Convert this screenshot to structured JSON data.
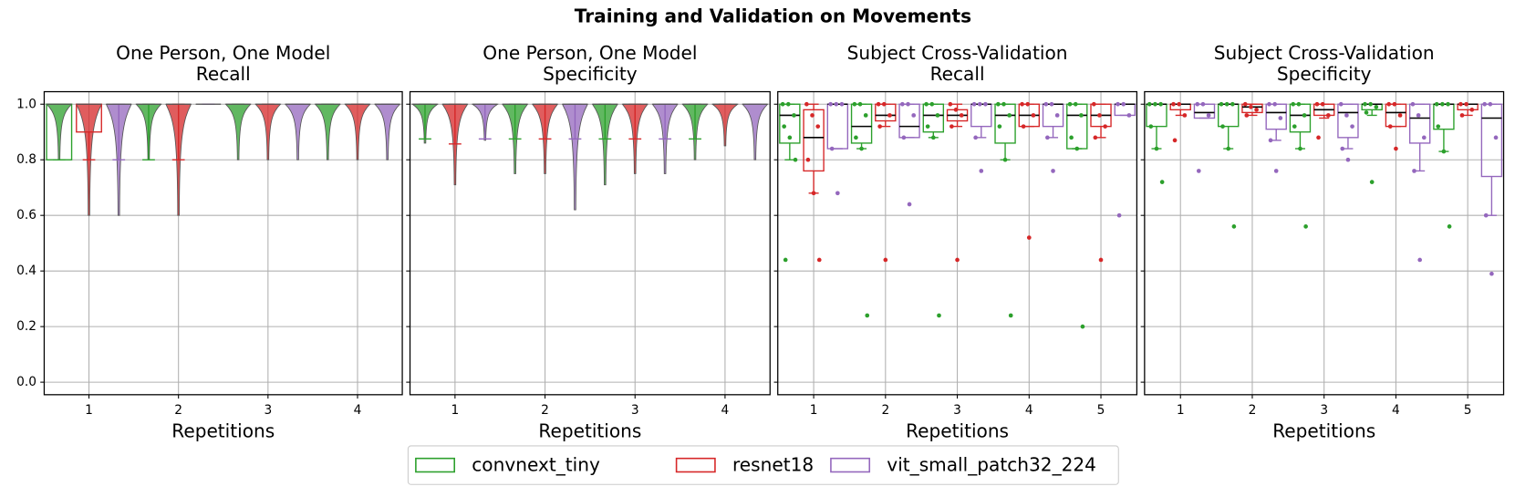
{
  "title": "Training and Validation on Movements",
  "legend": [
    {
      "name": "convnext_tiny",
      "color": "#2ca02c"
    },
    {
      "name": "resnet18",
      "color": "#d62728"
    },
    {
      "name": "vit_small_patch32_224",
      "color": "#9467bd"
    }
  ],
  "chart_data": [
    {
      "type": "violin",
      "title": [
        "One Person, One Model",
        "Recall"
      ],
      "xlabel": "Repetitions",
      "xticks": [
        1,
        2,
        3,
        4
      ],
      "xlim": [
        0.5,
        4.5
      ],
      "ylim": [
        -0.045,
        1.045
      ],
      "grid": true,
      "yticks": [
        {
          "value": 0,
          "label": "0.0"
        },
        0.2,
        0.4,
        0.6,
        0.8,
        {
          "value": 1,
          "label": "1.0"
        }
      ],
      "series": [
        {
          "values": [
            {
              "min": 0.8,
              "max": 1,
              "whislo": 0.8,
              "q1": 0.8,
              "median": 1,
              "q3": 1,
              "whishi": 1
            },
            {
              "min": 0.8,
              "max": 1,
              "whislo": 0.8,
              "q1": 1,
              "median": 1,
              "q3": 1,
              "whishi": 1
            },
            {
              "min": 0.8,
              "max": 1,
              "whislo": 1,
              "q1": 1,
              "median": 1,
              "q3": 1,
              "whishi": 1
            },
            {
              "min": 0.8,
              "max": 1,
              "whislo": 1,
              "q1": 1,
              "median": 1,
              "q3": 1,
              "whishi": 1
            }
          ]
        },
        {
          "values": [
            {
              "min": 0.6,
              "max": 1,
              "whislo": 0.8,
              "q1": 0.9,
              "median": 1,
              "q3": 1,
              "whishi": 1
            },
            {
              "min": 0.6,
              "max": 1,
              "whislo": 0.8,
              "q1": 1,
              "median": 1,
              "q3": 1,
              "whishi": 1
            },
            {
              "min": 0.8,
              "max": 1,
              "whislo": 1,
              "q1": 1,
              "median": 1,
              "q3": 1,
              "whishi": 1
            },
            {
              "min": 0.8,
              "max": 1,
              "whislo": 1,
              "q1": 1,
              "median": 1,
              "q3": 1,
              "whishi": 1
            }
          ]
        },
        {
          "values": [
            {
              "min": 0.6,
              "max": 1,
              "whislo": 0.8,
              "q1": 1,
              "median": 1,
              "q3": 1,
              "whishi": 1
            },
            {
              "min": 1,
              "max": 1,
              "whislo": 1,
              "q1": 1,
              "median": 1,
              "q3": 1,
              "whishi": 1
            },
            {
              "min": 0.8,
              "max": 1,
              "whislo": 1,
              "q1": 1,
              "median": 1,
              "q3": 1,
              "whishi": 1
            },
            {
              "min": 0.8,
              "max": 1,
              "whislo": 1,
              "q1": 1,
              "median": 1,
              "q3": 1,
              "whishi": 1
            }
          ]
        }
      ]
    },
    {
      "type": "violin",
      "title": [
        "One Person, One Model",
        "Specificity"
      ],
      "xlabel": "Repetitions",
      "xticks": [
        1,
        2,
        3,
        4
      ],
      "xlim": [
        0.5,
        4.5
      ],
      "ylim": [
        -0.045,
        1.045
      ],
      "grid": true,
      "yticks": [
        0,
        0.2,
        0.4,
        0.6,
        0.8,
        1
      ],
      "series": [
        {
          "values": [
            {
              "min": 0.86,
              "max": 1,
              "whislo": 0.875,
              "q1": 1,
              "median": 1,
              "q3": 1,
              "whishi": 1
            },
            {
              "min": 0.75,
              "max": 1,
              "whislo": 0.875,
              "q1": 1,
              "median": 1,
              "q3": 1,
              "whishi": 1
            },
            {
              "min": 0.71,
              "max": 1,
              "whislo": 0.875,
              "q1": 1,
              "median": 1,
              "q3": 1,
              "whishi": 1
            },
            {
              "min": 0.8,
              "max": 1,
              "whislo": 0.875,
              "q1": 1,
              "median": 1,
              "q3": 1,
              "whishi": 1
            }
          ]
        },
        {
          "values": [
            {
              "min": 0.71,
              "max": 1,
              "whislo": 0.857,
              "q1": 1,
              "median": 1,
              "q3": 1,
              "whishi": 1
            },
            {
              "min": 0.75,
              "max": 1,
              "whislo": 0.875,
              "q1": 1,
              "median": 1,
              "q3": 1,
              "whishi": 1
            },
            {
              "min": 0.75,
              "max": 1,
              "whislo": 0.875,
              "q1": 1,
              "median": 1,
              "q3": 1,
              "whishi": 1
            },
            {
              "min": 0.85,
              "max": 1,
              "whislo": 1,
              "q1": 1,
              "median": 1,
              "q3": 1,
              "whishi": 1
            }
          ]
        },
        {
          "values": [
            {
              "min": 0.87,
              "max": 1,
              "whislo": 0.875,
              "q1": 1,
              "median": 1,
              "q3": 1,
              "whishi": 1
            },
            {
              "min": 0.62,
              "max": 1,
              "whislo": 0.875,
              "q1": 1,
              "median": 1,
              "q3": 1,
              "whishi": 1
            },
            {
              "min": 0.75,
              "max": 1,
              "whislo": 0.875,
              "q1": 1,
              "median": 1,
              "q3": 1,
              "whishi": 1
            },
            {
              "min": 0.8,
              "max": 1,
              "whislo": 1,
              "q1": 1,
              "median": 1,
              "q3": 1,
              "whishi": 1
            }
          ]
        }
      ]
    },
    {
      "type": "box",
      "title": [
        "Subject Cross-Validation",
        "Recall"
      ],
      "xlabel": "Repetitions",
      "xticks": [
        1,
        2,
        3,
        4,
        5
      ],
      "xlim": [
        0.5,
        5.5
      ],
      "ylim": [
        -0.045,
        1.045
      ],
      "grid": true,
      "yticks": [
        0,
        0.2,
        0.4,
        0.6,
        0.8,
        1
      ],
      "series": [
        {
          "values": [
            {
              "whislo": 0.8,
              "q1": 0.86,
              "median": 0.96,
              "q3": 1,
              "whishi": 1,
              "points": [
                1,
                1,
                0.96,
                0.92,
                0.88,
                0.8,
                0.44
              ]
            },
            {
              "whislo": 0.84,
              "q1": 0.86,
              "median": 0.92,
              "q3": 1,
              "whishi": 1,
              "points": [
                1,
                1,
                0.96,
                0.88,
                0.84,
                0.24
              ]
            },
            {
              "whislo": 0.88,
              "q1": 0.9,
              "median": 0.96,
              "q3": 1,
              "whishi": 1,
              "points": [
                1,
                1,
                0.96,
                0.92,
                0.88,
                0.24
              ]
            },
            {
              "whislo": 0.8,
              "q1": 0.86,
              "median": 0.96,
              "q3": 1,
              "whishi": 1,
              "points": [
                1,
                1,
                0.96,
                0.92,
                0.8,
                0.24
              ]
            },
            {
              "whislo": 0.84,
              "q1": 0.84,
              "median": 0.96,
              "q3": 1,
              "whishi": 1,
              "points": [
                1,
                1,
                0.96,
                0.88,
                0.84,
                0.2
              ]
            }
          ]
        },
        {
          "values": [
            {
              "whislo": 0.68,
              "q1": 0.76,
              "median": 0.88,
              "q3": 0.98,
              "whishi": 1,
              "points": [
                1,
                0.96,
                0.92,
                0.8,
                0.68,
                0.44
              ]
            },
            {
              "whislo": 0.92,
              "q1": 0.94,
              "median": 0.96,
              "q3": 1,
              "whishi": 1,
              "points": [
                1,
                1,
                0.96,
                0.92,
                0.44
              ]
            },
            {
              "whislo": 0.92,
              "q1": 0.94,
              "median": 0.96,
              "q3": 0.98,
              "whishi": 1,
              "points": [
                1,
                0.98,
                0.96,
                0.92,
                0.44
              ]
            },
            {
              "whislo": 0.92,
              "q1": 0.92,
              "median": 0.96,
              "q3": 1,
              "whishi": 1,
              "points": [
                1,
                1,
                0.96,
                0.92,
                0.52
              ]
            },
            {
              "whislo": 0.88,
              "q1": 0.92,
              "median": 0.96,
              "q3": 1,
              "whishi": 1,
              "points": [
                1,
                0.96,
                0.92,
                0.88,
                0.44
              ]
            }
          ]
        },
        {
          "values": [
            {
              "whislo": 0.84,
              "q1": 0.84,
              "median": 1,
              "q3": 1,
              "whishi": 1,
              "points": [
                1,
                1,
                1,
                0.84,
                0.68
              ]
            },
            {
              "whislo": 0.88,
              "q1": 0.88,
              "median": 0.92,
              "q3": 1,
              "whishi": 1,
              "points": [
                1,
                1,
                0.96,
                0.88,
                0.64
              ]
            },
            {
              "whislo": 0.88,
              "q1": 0.92,
              "median": 1,
              "q3": 1,
              "whishi": 1,
              "points": [
                1,
                1,
                1,
                0.88,
                0.76
              ]
            },
            {
              "whislo": 0.88,
              "q1": 0.92,
              "median": 1,
              "q3": 1,
              "whishi": 1,
              "points": [
                1,
                1,
                0.96,
                0.88,
                0.76
              ]
            },
            {
              "whislo": 0.96,
              "q1": 0.96,
              "median": 1,
              "q3": 1,
              "whishi": 1,
              "points": [
                1,
                1,
                0.96,
                0.6
              ]
            }
          ]
        }
      ]
    },
    {
      "type": "box",
      "title": [
        "Subject Cross-Validation",
        "Specificity"
      ],
      "xlabel": "Repetitions",
      "xticks": [
        1,
        2,
        3,
        4,
        5
      ],
      "xlim": [
        0.5,
        5.5
      ],
      "ylim": [
        -0.045,
        1.045
      ],
      "grid": true,
      "yticks": [
        0,
        0.2,
        0.4,
        0.6,
        0.8,
        1
      ],
      "series": [
        {
          "values": [
            {
              "whislo": 0.84,
              "q1": 0.92,
              "median": 1,
              "q3": 1,
              "whishi": 1,
              "points": [
                1,
                1,
                1,
                0.92,
                0.84,
                0.72
              ]
            },
            {
              "whislo": 0.84,
              "q1": 0.92,
              "median": 1,
              "q3": 1,
              "whishi": 1,
              "points": [
                1,
                1,
                1,
                0.92,
                0.84,
                0.56
              ]
            },
            {
              "whislo": 0.84,
              "q1": 0.9,
              "median": 0.96,
              "q3": 1,
              "whishi": 1,
              "points": [
                1,
                1,
                0.96,
                0.92,
                0.84,
                0.56
              ]
            },
            {
              "whislo": 0.96,
              "q1": 0.98,
              "median": 1,
              "q3": 1,
              "whishi": 1,
              "points": [
                1,
                1,
                0.99,
                0.97,
                0.72
              ]
            },
            {
              "whislo": 0.83,
              "q1": 0.91,
              "median": 1,
              "q3": 1,
              "whishi": 1,
              "points": [
                1,
                1,
                1,
                0.92,
                0.83,
                0.56
              ]
            }
          ]
        },
        {
          "values": [
            {
              "whislo": 0.96,
              "q1": 0.98,
              "median": 1,
              "q3": 1,
              "whishi": 1,
              "points": [
                1,
                1,
                0.96,
                0.87
              ]
            },
            {
              "whislo": 0.96,
              "q1": 0.97,
              "median": 0.99,
              "q3": 1,
              "whishi": 1,
              "points": [
                1,
                0.99,
                0.98,
                0.96
              ]
            },
            {
              "whislo": 0.95,
              "q1": 0.96,
              "median": 0.98,
              "q3": 1,
              "whishi": 1,
              "points": [
                1,
                1,
                0.96,
                0.88
              ]
            },
            {
              "whislo": 0.92,
              "q1": 0.92,
              "median": 0.97,
              "q3": 1,
              "whishi": 1,
              "points": [
                1,
                1,
                0.96,
                0.92,
                0.84
              ]
            },
            {
              "whislo": 0.96,
              "q1": 0.98,
              "median": 1,
              "q3": 1,
              "whishi": 1,
              "points": [
                1,
                1,
                0.98,
                0.96
              ]
            }
          ]
        },
        {
          "values": [
            {
              "whislo": 0.95,
              "q1": 0.95,
              "median": 0.97,
              "q3": 1,
              "whishi": 1,
              "points": [
                1,
                1,
                0.96,
                0.76
              ]
            },
            {
              "whislo": 0.87,
              "q1": 0.91,
              "median": 0.97,
              "q3": 1,
              "whishi": 1,
              "points": [
                1,
                1,
                0.95,
                0.87,
                0.76
              ]
            },
            {
              "whislo": 0.84,
              "q1": 0.88,
              "median": 0.97,
              "q3": 1,
              "whishi": 1,
              "points": [
                1,
                0.96,
                0.92,
                0.84,
                0.8
              ]
            },
            {
              "whislo": 0.76,
              "q1": 0.86,
              "median": 0.95,
              "q3": 1,
              "whishi": 1,
              "points": [
                1,
                0.96,
                0.88,
                0.76,
                0.44
              ]
            },
            {
              "whislo": 0.6,
              "q1": 0.74,
              "median": 0.95,
              "q3": 1,
              "whishi": 1,
              "points": [
                1,
                1,
                0.88,
                0.6,
                0.39
              ]
            }
          ]
        }
      ]
    }
  ]
}
